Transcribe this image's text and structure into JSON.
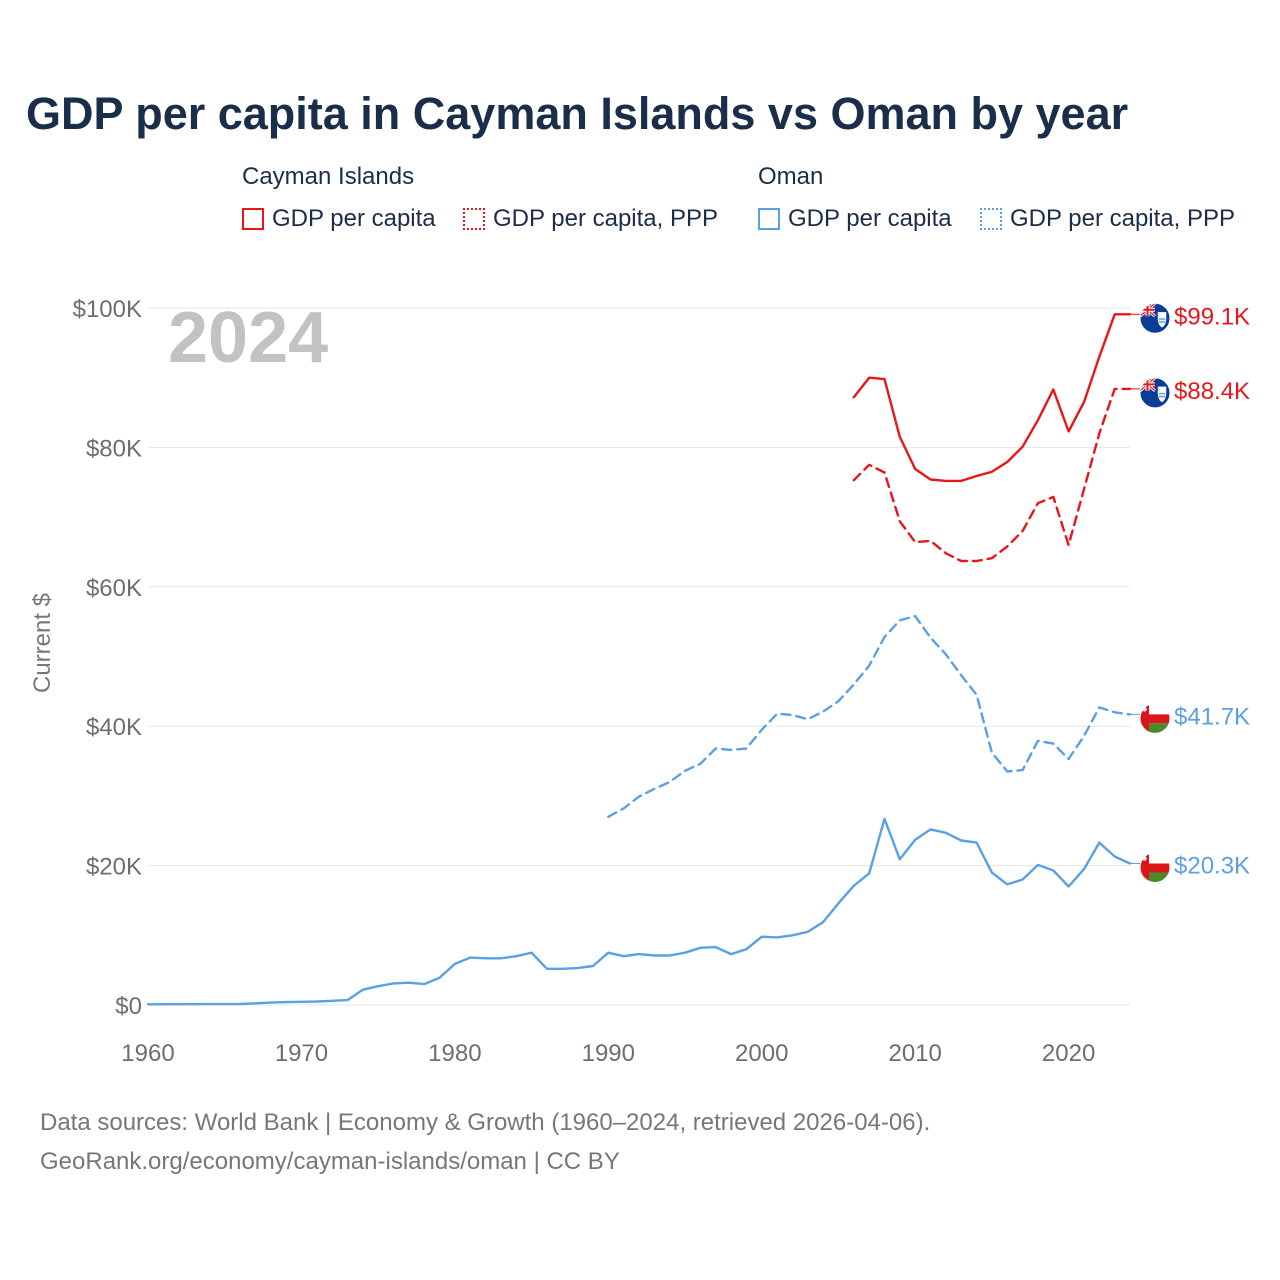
{
  "title": "GDP per capita in Cayman Islands vs Oman by year",
  "legend": {
    "groups": [
      {
        "name": "Cayman Islands",
        "items": [
          "GDP per capita",
          "GDP per capita, PPP"
        ],
        "color": "#e8161b"
      },
      {
        "name": "Oman",
        "items": [
          "GDP per capita",
          "GDP per capita, PPP"
        ],
        "color": "#5aa1e3"
      }
    ]
  },
  "year_watermark": "2024",
  "footer": {
    "line1": "Data sources: World Bank | Economy & Growth (1960–2024, retrieved 2026-04-06).",
    "line2": "GeoRank.org/economy/cayman-islands/oman | CC BY"
  },
  "chart_data": {
    "type": "line",
    "title": "GDP per capita in Cayman Islands vs Oman by year",
    "xlabel": "",
    "ylabel": "Current $",
    "xlim": [
      1960,
      2024
    ],
    "ylim": [
      0,
      100000
    ],
    "x_ticks": [
      1960,
      1970,
      1980,
      1990,
      2000,
      2010,
      2020
    ],
    "x_tick_labels": [
      "1960",
      "1970",
      "1980",
      "1990",
      "2000",
      "2010",
      "2020"
    ],
    "y_ticks": [
      0,
      20000,
      40000,
      60000,
      80000,
      100000
    ],
    "y_tick_labels": [
      "$0",
      "$20K",
      "$40K",
      "$60K",
      "$80K",
      "$100K"
    ],
    "grid": true,
    "series": [
      {
        "name": "Cayman Islands GDP per capita",
        "color": "#e8161b",
        "style": "solid",
        "end_label": "$99.1K",
        "flag": "cayman",
        "points": [
          [
            2006,
            87200
          ],
          [
            2007,
            90000
          ],
          [
            2008,
            89800
          ],
          [
            2009,
            81500
          ],
          [
            2010,
            76900
          ],
          [
            2011,
            75400
          ],
          [
            2012,
            75200
          ],
          [
            2013,
            75200
          ],
          [
            2014,
            75900
          ],
          [
            2015,
            76500
          ],
          [
            2016,
            77900
          ],
          [
            2017,
            80100
          ],
          [
            2018,
            83900
          ],
          [
            2019,
            88300
          ],
          [
            2020,
            82300
          ],
          [
            2021,
            86500
          ],
          [
            2022,
            93000
          ],
          [
            2023,
            99100
          ],
          [
            2024,
            99100
          ]
        ]
      },
      {
        "name": "Cayman Islands GDP per capita, PPP",
        "color": "#e8161b",
        "style": "dashed",
        "end_label": "$88.4K",
        "flag": "cayman",
        "points": [
          [
            2006,
            75300
          ],
          [
            2007,
            77500
          ],
          [
            2008,
            76400
          ],
          [
            2009,
            69400
          ],
          [
            2010,
            66400
          ],
          [
            2011,
            66600
          ],
          [
            2012,
            64800
          ],
          [
            2013,
            63700
          ],
          [
            2014,
            63700
          ],
          [
            2015,
            64100
          ],
          [
            2016,
            65800
          ],
          [
            2017,
            68000
          ],
          [
            2018,
            72000
          ],
          [
            2019,
            72900
          ],
          [
            2020,
            66000
          ],
          [
            2021,
            74000
          ],
          [
            2022,
            82000
          ],
          [
            2023,
            88400
          ],
          [
            2024,
            88400
          ]
        ]
      },
      {
        "name": "Oman GDP per capita, PPP",
        "color": "#5aa1e3",
        "style": "dashed",
        "end_label": "$41.7K",
        "flag": "oman",
        "points": [
          [
            1990,
            27000
          ],
          [
            1991,
            28200
          ],
          [
            1992,
            29900
          ],
          [
            1993,
            31000
          ],
          [
            1994,
            32000
          ],
          [
            1995,
            33600
          ],
          [
            1996,
            34600
          ],
          [
            1997,
            36800
          ],
          [
            1998,
            36600
          ],
          [
            1999,
            36800
          ],
          [
            2000,
            39500
          ],
          [
            2001,
            41800
          ],
          [
            2002,
            41600
          ],
          [
            2003,
            41000
          ],
          [
            2004,
            42100
          ],
          [
            2005,
            43600
          ],
          [
            2006,
            46000
          ],
          [
            2007,
            48700
          ],
          [
            2008,
            52800
          ],
          [
            2009,
            55200
          ],
          [
            2010,
            55800
          ],
          [
            2011,
            52700
          ],
          [
            2012,
            50300
          ],
          [
            2013,
            47300
          ],
          [
            2014,
            44500
          ],
          [
            2015,
            36200
          ],
          [
            2016,
            33500
          ],
          [
            2017,
            33700
          ],
          [
            2018,
            37900
          ],
          [
            2019,
            37500
          ],
          [
            2020,
            35300
          ],
          [
            2021,
            38600
          ],
          [
            2022,
            42700
          ],
          [
            2023,
            42000
          ],
          [
            2024,
            41700
          ]
        ]
      },
      {
        "name": "Oman GDP per capita",
        "color": "#5aa1e3",
        "style": "solid",
        "end_label": "$20.3K",
        "flag": "oman",
        "points": [
          [
            1960,
            100
          ],
          [
            1962,
            120
          ],
          [
            1964,
            130
          ],
          [
            1966,
            140
          ],
          [
            1967,
            250
          ],
          [
            1968,
            350
          ],
          [
            1969,
            420
          ],
          [
            1970,
            460
          ],
          [
            1971,
            500
          ],
          [
            1972,
            600
          ],
          [
            1973,
            700
          ],
          [
            1974,
            2200
          ],
          [
            1975,
            2700
          ],
          [
            1976,
            3100
          ],
          [
            1977,
            3200
          ],
          [
            1978,
            3000
          ],
          [
            1979,
            3900
          ],
          [
            1980,
            5900
          ],
          [
            1981,
            6800
          ],
          [
            1982,
            6700
          ],
          [
            1983,
            6700
          ],
          [
            1984,
            7000
          ],
          [
            1985,
            7500
          ],
          [
            1986,
            5200
          ],
          [
            1987,
            5200
          ],
          [
            1988,
            5300
          ],
          [
            1989,
            5600
          ],
          [
            1990,
            7500
          ],
          [
            1991,
            7000
          ],
          [
            1992,
            7300
          ],
          [
            1993,
            7100
          ],
          [
            1994,
            7100
          ],
          [
            1995,
            7500
          ],
          [
            1996,
            8200
          ],
          [
            1997,
            8300
          ],
          [
            1998,
            7300
          ],
          [
            1999,
            8000
          ],
          [
            2000,
            9800
          ],
          [
            2001,
            9700
          ],
          [
            2002,
            10000
          ],
          [
            2003,
            10500
          ],
          [
            2004,
            11900
          ],
          [
            2005,
            14600
          ],
          [
            2006,
            17100
          ],
          [
            2007,
            18900
          ],
          [
            2008,
            26700
          ],
          [
            2009,
            20900
          ],
          [
            2010,
            23700
          ],
          [
            2011,
            25200
          ],
          [
            2012,
            24700
          ],
          [
            2013,
            23600
          ],
          [
            2014,
            23300
          ],
          [
            2015,
            19000
          ],
          [
            2016,
            17300
          ],
          [
            2017,
            18000
          ],
          [
            2018,
            20100
          ],
          [
            2019,
            19300
          ],
          [
            2020,
            17000
          ],
          [
            2021,
            19500
          ],
          [
            2022,
            23300
          ],
          [
            2023,
            21300
          ],
          [
            2024,
            20300
          ]
        ]
      }
    ]
  }
}
